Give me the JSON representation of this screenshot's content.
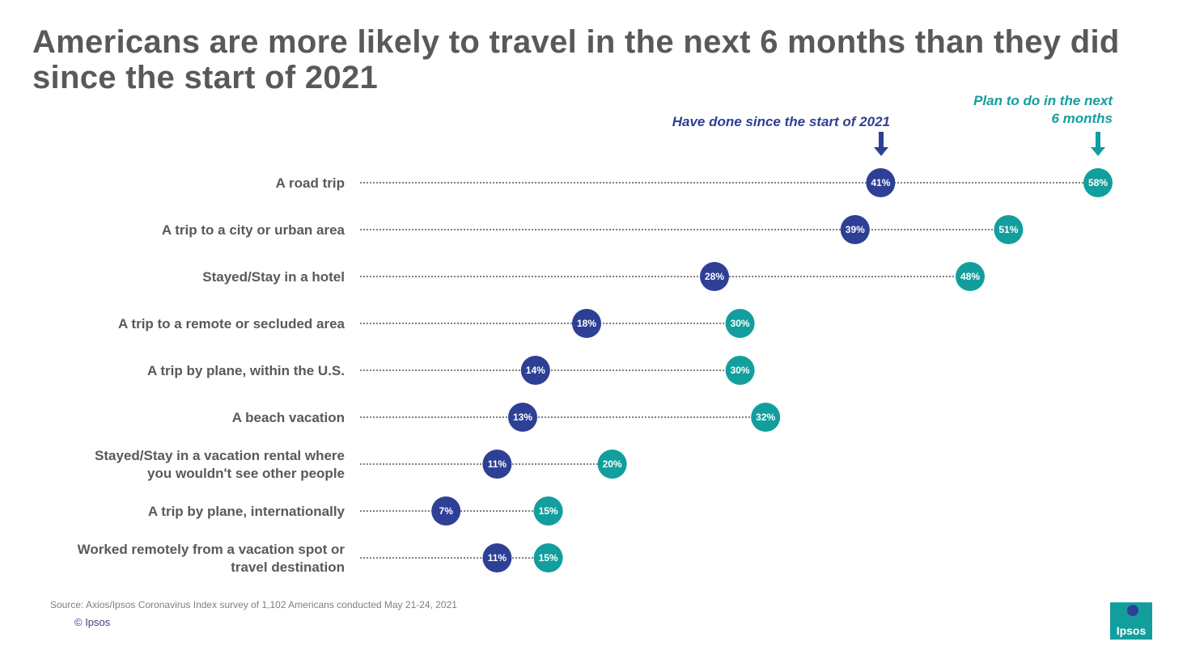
{
  "title": "Americans are more likely to travel in the next 6 months than they did since the start of 2021",
  "legend": {
    "done": "Have done since the start of 2021",
    "plan": "Plan to do in the next 6 months"
  },
  "colors": {
    "done": "#2E3F96",
    "plan": "#139E9E",
    "label": "#595959",
    "dots": "#808080"
  },
  "chart_data": {
    "type": "dot",
    "title": "Americans are more likely to travel in the next 6 months than they did since the start of 2021",
    "xlim": [
      0,
      60
    ],
    "series": [
      {
        "name": "Have done since the start of 2021",
        "values": [
          41,
          39,
          28,
          18,
          14,
          13,
          11,
          7,
          11
        ]
      },
      {
        "name": "Plan to do in the next 6 months",
        "values": [
          58,
          51,
          48,
          30,
          30,
          32,
          20,
          15,
          15
        ]
      }
    ],
    "categories": [
      [
        "A road trip"
      ],
      [
        "A trip to a city or urban area"
      ],
      [
        "Stayed/Stay in a hotel"
      ],
      [
        "A trip to a remote or secluded area"
      ],
      [
        "A trip by plane, within the U.S."
      ],
      [
        "A beach vacation"
      ],
      [
        "Stayed/Stay in a vacation rental where",
        "you wouldn't see other people"
      ],
      [
        "A trip by plane, internationally"
      ],
      [
        "Worked remotely from a vacation spot or",
        "travel destination"
      ]
    ],
    "value_labels": {
      "done": [
        "41%",
        "39%",
        "28%",
        "18%",
        "14%",
        "13%",
        "11%",
        "7%",
        "11%"
      ],
      "plan": [
        "58%",
        "51%",
        "48%",
        "30%",
        "30%",
        "32%",
        "20%",
        "15%",
        "15%"
      ]
    }
  },
  "footer": {
    "source": "Source: Axios/Ipsos Coronavirus Index survey of 1,102 Americans conducted May 21-24, 2021",
    "copyright": "© Ipsos",
    "logo": "Ipsos"
  }
}
